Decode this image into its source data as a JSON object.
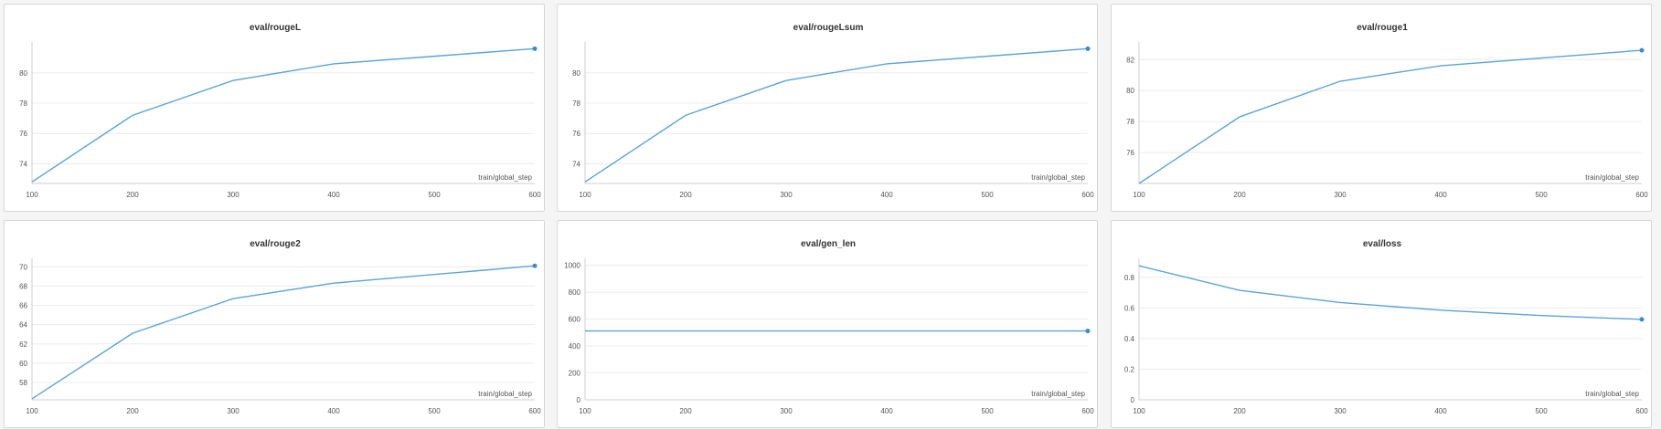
{
  "colors": {
    "series": "#5aa3d8",
    "point": "#3a8ad0"
  },
  "chart_data": [
    {
      "type": "line",
      "title": "eval/rougeL",
      "xlabel": "train/global_step",
      "x": [
        100,
        200,
        300,
        400,
        500,
        600
      ],
      "xticks": [
        "100",
        "200",
        "300",
        "400",
        "500",
        "600"
      ],
      "yticks": [
        74,
        76,
        78,
        80
      ],
      "ylim": [
        72.7,
        81.8
      ],
      "series": [
        {
          "values": [
            72.8,
            77.2,
            79.5,
            80.6,
            81.1,
            81.6
          ]
        }
      ]
    },
    {
      "type": "line",
      "title": "eval/rougeLsum",
      "xlabel": "train/global_step",
      "x": [
        100,
        200,
        300,
        400,
        500,
        600
      ],
      "xticks": [
        "100",
        "200",
        "300",
        "400",
        "500",
        "600"
      ],
      "yticks": [
        74,
        76,
        78,
        80
      ],
      "ylim": [
        72.7,
        81.8
      ],
      "series": [
        {
          "values": [
            72.8,
            77.2,
            79.5,
            80.6,
            81.1,
            81.6
          ]
        }
      ]
    },
    {
      "type": "line",
      "title": "eval/rouge1",
      "xlabel": "train/global_step",
      "x": [
        100,
        200,
        300,
        400,
        500,
        600
      ],
      "xticks": [
        "100",
        "200",
        "300",
        "400",
        "500",
        "600"
      ],
      "yticks": [
        76,
        78,
        80,
        82
      ],
      "ylim": [
        74.0,
        82.9
      ],
      "series": [
        {
          "values": [
            74.0,
            78.3,
            80.6,
            81.6,
            82.1,
            82.6
          ]
        }
      ]
    },
    {
      "type": "line",
      "title": "eval/rouge2",
      "xlabel": "train/global_step",
      "x": [
        100,
        200,
        300,
        400,
        500,
        600
      ],
      "xticks": [
        "100",
        "200",
        "300",
        "400",
        "500",
        "600"
      ],
      "yticks": [
        58,
        60,
        62,
        64,
        66,
        68,
        70
      ],
      "ylim": [
        56.2,
        70.5
      ],
      "series": [
        {
          "values": [
            56.3,
            63.1,
            66.7,
            68.3,
            69.2,
            70.1
          ]
        }
      ]
    },
    {
      "type": "line",
      "title": "eval/gen_len",
      "xlabel": "train/global_step",
      "x": [
        100,
        200,
        300,
        400,
        500,
        600
      ],
      "xticks": [
        "100",
        "200",
        "300",
        "400",
        "500",
        "600"
      ],
      "yticks": [
        0,
        200,
        400,
        600,
        800,
        1000
      ],
      "ylim": [
        0,
        1025
      ],
      "series": [
        {
          "values": [
            512,
            512,
            512,
            512,
            512,
            512
          ]
        }
      ]
    },
    {
      "type": "line",
      "title": "eval/loss",
      "xlabel": "train/global_step",
      "x": [
        100,
        200,
        300,
        400,
        500,
        600
      ],
      "xticks": [
        "100",
        "200",
        "300",
        "400",
        "500",
        "600"
      ],
      "yticks": [
        0,
        0.2,
        0.4,
        0.6,
        0.8
      ],
      "ylim": [
        0,
        0.9
      ],
      "series": [
        {
          "values": [
            0.875,
            0.715,
            0.635,
            0.585,
            0.55,
            0.525
          ]
        }
      ]
    }
  ]
}
